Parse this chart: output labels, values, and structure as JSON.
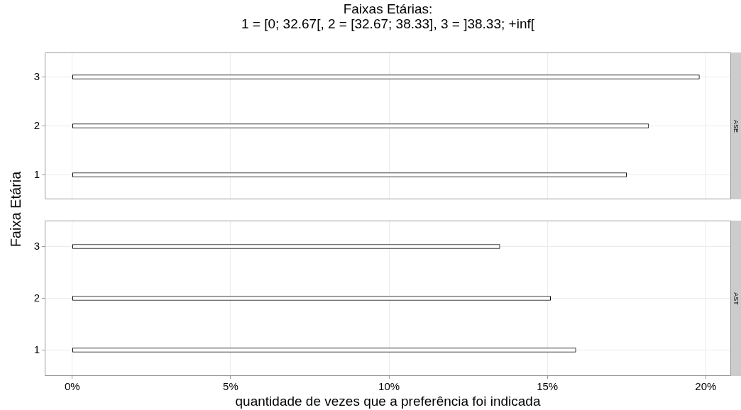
{
  "chart_data": [
    {
      "type": "bar",
      "orientation": "horizontal",
      "title": "Faixas Etárias:\n1 = [0; 32.67[, 2 = [32.67; 38.33], 3 = ]38.33; +inf[",
      "ylabel": "Faixa Etária",
      "subtitle": "ASE",
      "categories": [
        "3",
        "2",
        "1"
      ],
      "series": [
        {
          "color": "#ffffff",
          "values": [
            19.8,
            18.2,
            17.5
          ]
        }
      ],
      "xlim": [
        -0.87,
        20.8
      ],
      "xticks": [
        {
          "value": 0,
          "label": null
        },
        {
          "value": 5,
          "label": null
        },
        {
          "value": 10,
          "label": null
        },
        {
          "value": 15,
          "label": null
        },
        {
          "value": 20,
          "label": null
        }
      ],
      "grid": true,
      "legend": false,
      "tick_labels": "y"
    },
    {
      "type": "bar",
      "orientation": "horizontal",
      "subtitle": "AST",
      "xlabel": "quantidade de vezes que a preferência foi indicada",
      "categories": [
        "3",
        "2",
        "1"
      ],
      "series": [
        {
          "color": "#ffffff",
          "values": [
            13.5,
            15.1,
            15.9
          ]
        }
      ],
      "xlim": [
        -0.87,
        20.8
      ],
      "xticks": [
        {
          "value": 0,
          "label": "0%"
        },
        {
          "value": 5,
          "label": "5%"
        },
        {
          "value": 10,
          "label": "10%"
        },
        {
          "value": 15,
          "label": "15%"
        },
        {
          "value": 20,
          "label": "20%"
        }
      ],
      "grid": true,
      "legend": false
    }
  ]
}
